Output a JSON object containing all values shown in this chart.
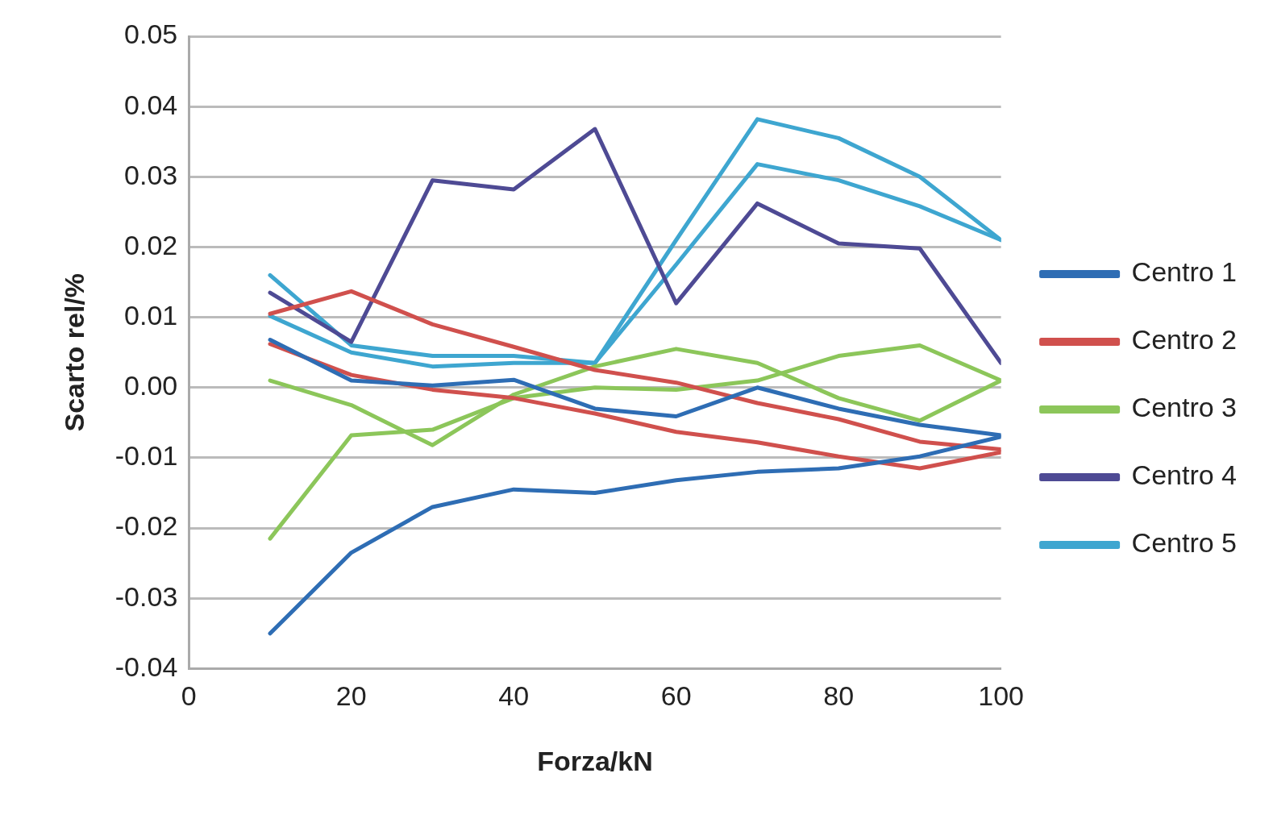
{
  "chart_data": {
    "type": "line",
    "xlabel": "Forza/kN",
    "ylabel": "Scarto rel/%",
    "x": [
      10,
      20,
      30,
      40,
      50,
      60,
      70,
      80,
      90,
      100
    ],
    "xlim": [
      0,
      100
    ],
    "xticks": [
      0,
      20,
      40,
      60,
      80,
      100
    ],
    "ylim": [
      -0.04,
      0.05
    ],
    "yticks": [
      {
        "value": -0.04,
        "label": "-0.04"
      },
      {
        "value": -0.03,
        "label": "-0.03"
      },
      {
        "value": -0.02,
        "label": "-0.02"
      },
      {
        "value": -0.01,
        "label": "-0.01"
      },
      {
        "value": 0,
        "label": "0.00"
      },
      {
        "value": 0.01,
        "label": "0.01"
      },
      {
        "value": 0.02,
        "label": "0.02"
      },
      {
        "value": 0.03,
        "label": "0.03"
      },
      {
        "value": 0.04,
        "label": "0.04"
      },
      {
        "value": 0.05,
        "label": "0.05"
      }
    ],
    "grid": "y",
    "legend": "right",
    "marker": "none",
    "line_style": "solid",
    "series": [
      {
        "name": "Centro 1",
        "color": "#2e6db4",
        "values": [
          -0.035,
          -0.0235,
          -0.017,
          -0.0145,
          -0.015,
          -0.0132,
          -0.012,
          -0.0115,
          -0.0098,
          -0.007
        ]
      },
      {
        "color": "#2e6db4",
        "values": [
          0.0068,
          0.001,
          0.0003,
          0.0011,
          -0.003,
          -0.0041,
          0.0,
          -0.003,
          -0.0053,
          -0.0068
        ]
      },
      {
        "name": "Centro 2",
        "color": "#d0504d",
        "values": [
          0.0105,
          0.0137,
          0.009,
          0.0058,
          0.0025,
          0.0007,
          -0.0022,
          -0.0045,
          -0.0077,
          -0.0088
        ]
      },
      {
        "color": "#d0504d",
        "values": [
          0.0062,
          0.0018,
          -0.0003,
          -0.0015,
          -0.0037,
          -0.0063,
          -0.0078,
          -0.0098,
          -0.0115,
          -0.0092
        ]
      },
      {
        "name": "Centro 3",
        "color": "#8cc65a",
        "values": [
          0.001,
          -0.0025,
          -0.0082,
          -0.001,
          0.003,
          0.0055,
          0.0035,
          -0.0015,
          -0.0047,
          0.001
        ]
      },
      {
        "color": "#8cc65a",
        "values": [
          -0.0215,
          -0.0068,
          -0.006,
          -0.0015,
          0.0,
          -0.0003,
          0.001,
          0.0045,
          0.006,
          0.001
        ]
      },
      {
        "name": "Centro 4",
        "color": "#4e4a94",
        "values": [
          0.0135,
          0.0065,
          0.0295,
          0.0282,
          0.0368,
          0.012,
          0.0262,
          0.0205,
          0.0198,
          0.0035
        ]
      },
      {
        "name": "Centro 5",
        "color": "#3ea6d0",
        "values": [
          0.016,
          0.006,
          0.0045,
          0.0045,
          0.0035,
          0.021,
          0.0382,
          0.0355,
          0.03,
          0.021
        ]
      },
      {
        "color": "#3ea6d0",
        "values": [
          0.0102,
          0.005,
          0.003,
          0.0035,
          0.0035,
          0.0175,
          0.0318,
          0.0295,
          0.0258,
          0.021
        ]
      }
    ]
  }
}
